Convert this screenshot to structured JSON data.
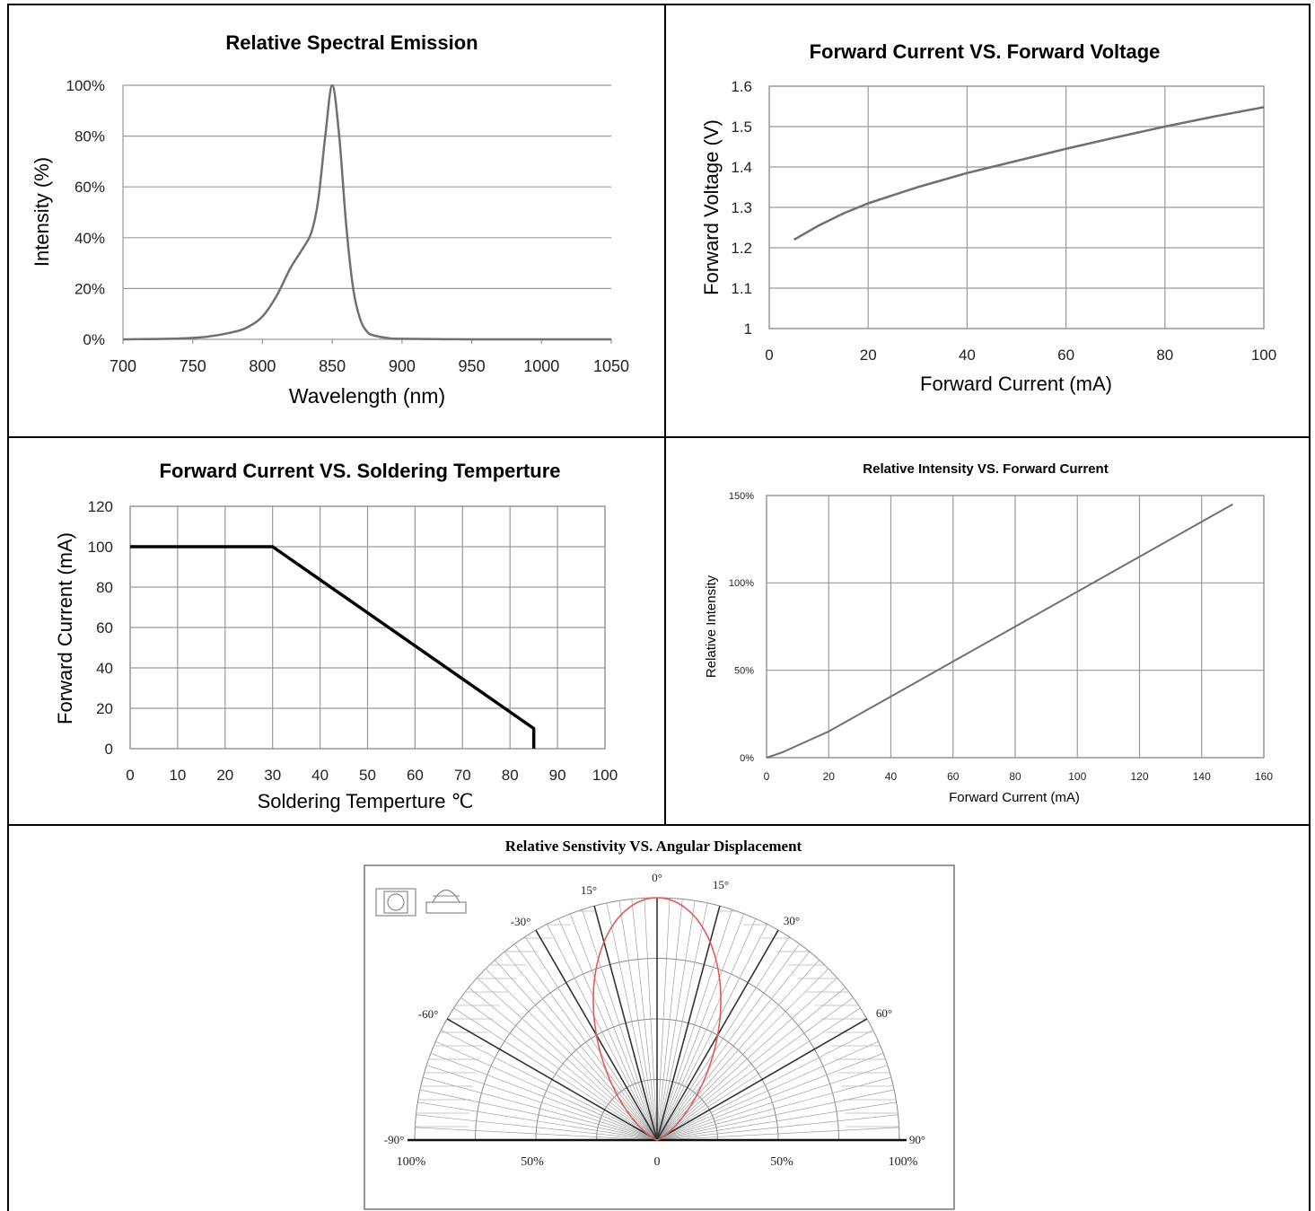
{
  "colors": {
    "border": "#000000",
    "grid": "#9a9a9a",
    "curve_gray": "#707070",
    "curve_black": "#000000",
    "polar_red": "#e05a5a",
    "polar_grid": "#8a8a8a"
  },
  "chart_data": [
    {
      "id": "spectral",
      "type": "line",
      "title": "Relative Spectral Emission",
      "xlabel": "Wavelength (nm)",
      "ylabel": "Intensity (%)",
      "xlim": [
        700,
        1050
      ],
      "ylim": [
        0,
        100
      ],
      "xticks": [
        "700",
        "750",
        "800",
        "850",
        "900",
        "950",
        "1000",
        "1050"
      ],
      "yticks": [
        "0%",
        "20%",
        "40%",
        "60%",
        "80%",
        "100%"
      ],
      "grid": "horizontal",
      "series": [
        {
          "x": [
            700,
            740,
            760,
            780,
            790,
            800,
            810,
            820,
            828,
            835,
            840,
            845,
            850,
            855,
            860,
            865,
            870,
            875,
            880,
            890,
            900,
            950,
            1000,
            1050
          ],
          "y": [
            0,
            0.3,
            1,
            3,
            5,
            9,
            17,
            28,
            35,
            42,
            55,
            80,
            100,
            80,
            45,
            20,
            8,
            3,
            1.5,
            0.5,
            0.2,
            0,
            0,
            0
          ]
        }
      ]
    },
    {
      "id": "fv",
      "type": "line",
      "title": "Forward Current VS. Forward Voltage",
      "xlabel": "Forward Current (mA)",
      "ylabel": "Forward Voltage (V)",
      "xlim": [
        0,
        100
      ],
      "ylim": [
        1,
        1.6
      ],
      "xticks": [
        "0",
        "20",
        "40",
        "60",
        "80",
        "100"
      ],
      "yticks": [
        "1",
        "1.1",
        "1.2",
        "1.3",
        "1.4",
        "1.5",
        "1.6"
      ],
      "grid": "both",
      "series": [
        {
          "x": [
            5,
            10,
            15,
            20,
            30,
            40,
            50,
            60,
            70,
            80,
            90,
            100
          ],
          "y": [
            1.22,
            1.255,
            1.285,
            1.31,
            1.35,
            1.385,
            1.415,
            1.445,
            1.473,
            1.5,
            1.525,
            1.548
          ]
        }
      ]
    },
    {
      "id": "derating",
      "type": "line",
      "title": "Forward Current  VS. Soldering Temperture",
      "xlabel": "Soldering Temperture ℃",
      "ylabel": "Forward Current (mA)",
      "xlim": [
        0,
        100
      ],
      "ylim": [
        0,
        120
      ],
      "xticks": [
        "0",
        "10",
        "20",
        "30",
        "40",
        "50",
        "60",
        "70",
        "80",
        "90",
        "100"
      ],
      "yticks": [
        "0",
        "20",
        "40",
        "60",
        "80",
        "100",
        "120"
      ],
      "grid": "both",
      "series": [
        {
          "x": [
            0,
            30,
            85,
            85
          ],
          "y": [
            100,
            100,
            10,
            0
          ]
        }
      ]
    },
    {
      "id": "intensity",
      "type": "line",
      "title": "Relative Intensity VS. Forward Current",
      "xlabel": "Forward Current (mA)",
      "ylabel": "Relative Intensity",
      "xlim": [
        0,
        160
      ],
      "ylim": [
        0,
        150
      ],
      "xticks": [
        "0",
        "20",
        "40",
        "60",
        "80",
        "100",
        "120",
        "140",
        "160"
      ],
      "yticks": [
        "0%",
        "50%",
        "100%",
        "150%"
      ],
      "grid": "both",
      "series": [
        {
          "x": [
            0,
            5,
            10,
            20,
            40,
            60,
            80,
            100,
            120,
            150
          ],
          "y": [
            0,
            3,
            7,
            15,
            35,
            55,
            75,
            95,
            115,
            145
          ]
        }
      ]
    },
    {
      "id": "polar",
      "type": "polar",
      "title": "Relative Senstivity VS. Angular Displacement",
      "angle_labels": [
        "-90°",
        "-60°",
        "-30°",
        "15°",
        "0°",
        "15°",
        "30°",
        "60°",
        "90°"
      ],
      "radius_labels": [
        "100%",
        "50%",
        "0",
        "50%",
        "100%"
      ],
      "series": [
        {
          "name": "",
          "pattern": "cos^n",
          "half_angle_deg": 30
        }
      ]
    }
  ]
}
